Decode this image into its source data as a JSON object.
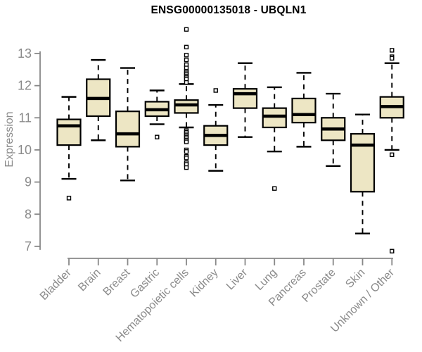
{
  "chart_data": {
    "type": "box",
    "title": "ENSG00000135018 - UBQLN1",
    "ylabel": "Expression",
    "xlabel": "",
    "ylim": [
      6.8,
      13.9
    ],
    "yticks": [
      7,
      8,
      9,
      10,
      11,
      12,
      13
    ],
    "grid": false,
    "legend": "none",
    "categories": [
      "Bladder",
      "Brain",
      "Breast",
      "Gastric",
      "Hematopoietic cells",
      "Kidney",
      "Liver",
      "Lung",
      "Pancreas",
      "Prostate",
      "Skin",
      "Unknown / Other"
    ],
    "boxes": [
      {
        "label": "Bladder",
        "low": 9.1,
        "q1": 10.15,
        "median": 10.75,
        "q3": 10.95,
        "high": 11.65,
        "outliers": [
          8.5
        ]
      },
      {
        "label": "Brain",
        "low": 10.3,
        "q1": 11.05,
        "median": 11.6,
        "q3": 12.2,
        "high": 12.8,
        "outliers": []
      },
      {
        "label": "Breast",
        "low": 9.05,
        "q1": 10.1,
        "median": 10.5,
        "q3": 11.2,
        "high": 12.55,
        "outliers": []
      },
      {
        "label": "Gastric",
        "low": 10.8,
        "q1": 11.05,
        "median": 11.25,
        "q3": 11.5,
        "high": 11.85,
        "outliers": [
          10.4
        ]
      },
      {
        "label": "Hematopoietic cells",
        "low": 10.7,
        "q1": 11.15,
        "median": 11.4,
        "q3": 11.55,
        "high": 12.05,
        "outliers": [
          13.75,
          13.2,
          12.95,
          12.8,
          12.65,
          12.55,
          12.45,
          12.4,
          12.35,
          12.3,
          12.25,
          12.2,
          12.1,
          10.6,
          10.55,
          10.5,
          10.45,
          10.4,
          10.35,
          10.3,
          10.25,
          10.0,
          9.95,
          9.8,
          9.75,
          9.6,
          9.55,
          9.45
        ]
      },
      {
        "label": "Kidney",
        "low": 9.35,
        "q1": 10.15,
        "median": 10.45,
        "q3": 10.75,
        "high": 11.4,
        "outliers": [
          11.85
        ]
      },
      {
        "label": "Liver",
        "low": 10.4,
        "q1": 11.3,
        "median": 11.75,
        "q3": 11.9,
        "high": 12.7,
        "outliers": []
      },
      {
        "label": "Lung",
        "low": 9.95,
        "q1": 10.7,
        "median": 11.05,
        "q3": 11.3,
        "high": 11.95,
        "outliers": [
          8.8
        ]
      },
      {
        "label": "Pancreas",
        "low": 10.1,
        "q1": 10.85,
        "median": 11.1,
        "q3": 11.6,
        "high": 12.4,
        "outliers": []
      },
      {
        "label": "Prostate",
        "low": 9.5,
        "q1": 10.3,
        "median": 10.65,
        "q3": 11.0,
        "high": 11.75,
        "outliers": []
      },
      {
        "label": "Skin",
        "low": 7.4,
        "q1": 8.7,
        "median": 10.15,
        "q3": 10.5,
        "high": 11.1,
        "outliers": []
      },
      {
        "label": "Unknown / Other",
        "low": 10.0,
        "q1": 11.0,
        "median": 11.35,
        "q3": 11.65,
        "high": 12.7,
        "outliers": [
          13.1,
          12.9,
          12.85,
          9.85,
          6.85
        ]
      }
    ]
  },
  "colors": {
    "background": "#ffffff",
    "box_fill": "#EDE6C4",
    "box_border": "#000000",
    "median": "#000000",
    "whisker": "#000000",
    "outlier_stroke": "#000000",
    "outlier_fill": "#ffffff",
    "axis": "#888888",
    "tick_label": "#8a8a8a",
    "title": "#000000"
  }
}
